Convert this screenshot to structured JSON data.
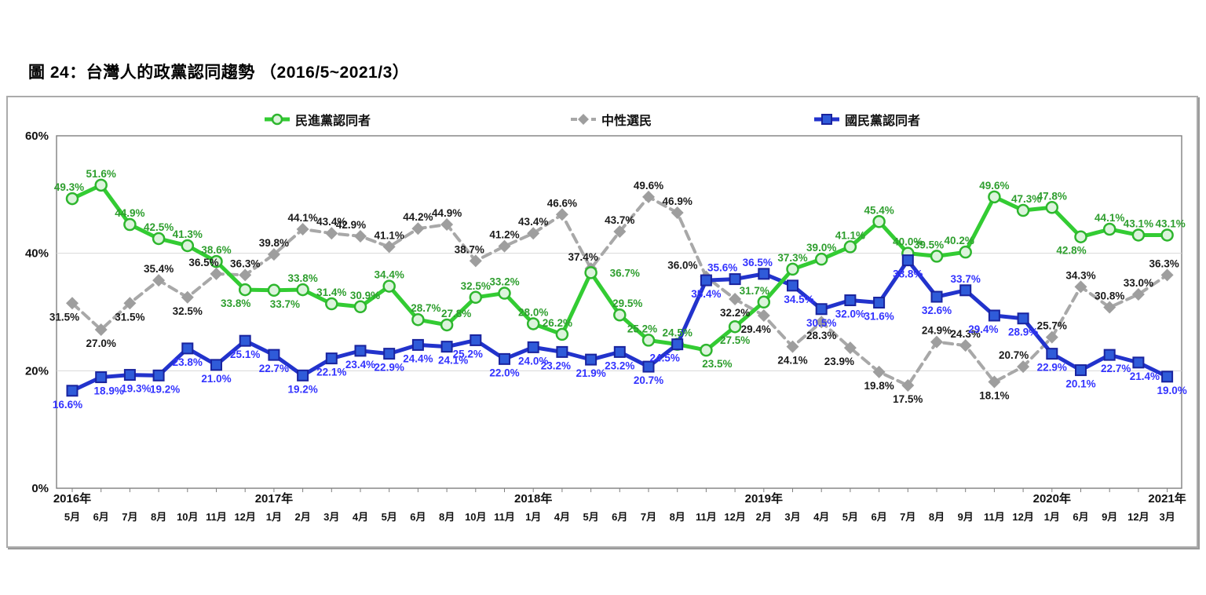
{
  "title": "圖 24：台灣人的政黨認同趨勢 （2016/5~2021/3）",
  "chart_data": {
    "type": "line",
    "title": "圖 24：台灣人的政黨認同趨勢 （2016/5~2021/3）",
    "ylim": [
      0,
      60
    ],
    "grid": "horizontal",
    "legend_position": "top",
    "y_ticks": [
      {
        "value": 0,
        "label": "0%"
      },
      {
        "value": 20,
        "label": "20%"
      },
      {
        "value": 40,
        "label": "40%"
      },
      {
        "value": 60,
        "label": "60%"
      }
    ],
    "grid_values": [
      20,
      40
    ],
    "x_categories": [
      "5月",
      "6月",
      "7月",
      "8月",
      "10月",
      "11月",
      "12月",
      "1月",
      "2月",
      "3月",
      "4月",
      "5月",
      "6月",
      "8月",
      "10月",
      "11月",
      "1月",
      "4月",
      "5月",
      "6月",
      "7月",
      "8月",
      "11月",
      "12月",
      "2月",
      "3月",
      "4月",
      "5月",
      "6月",
      "7月",
      "8月",
      "9月",
      "11月",
      "12月",
      "1月",
      "6月",
      "9月",
      "12月",
      "3月"
    ],
    "year_labels": [
      {
        "label": "2016年",
        "point_index": 0
      },
      {
        "label": "2017年",
        "point_index": 7
      },
      {
        "label": "2018年",
        "point_index": 16
      },
      {
        "label": "2019年",
        "point_index": 24
      },
      {
        "label": "2020年",
        "point_index": 34
      },
      {
        "label": "2021年",
        "point_index": 38
      }
    ],
    "series": [
      {
        "name": "民進黨認同者",
        "id": "dpp",
        "marker": "circle",
        "dashed": false,
        "line_color": "#33CC33",
        "marker_fill": "#DCF4DC",
        "marker_stroke": "#2EB62E",
        "label_color": "#2E9E2E",
        "values": [
          49.3,
          51.6,
          44.9,
          42.5,
          41.3,
          38.6,
          33.8,
          33.7,
          33.8,
          31.4,
          30.9,
          34.4,
          28.7,
          27.8,
          32.5,
          33.2,
          28.0,
          26.2,
          36.7,
          29.5,
          25.2,
          24.5,
          23.5,
          27.5,
          31.7,
          37.3,
          39.0,
          41.1,
          45.4,
          40.0,
          39.5,
          40.2,
          49.6,
          47.3,
          47.8,
          42.8,
          44.1,
          43.1,
          43.1
        ],
        "label_side": [
          "a",
          "a",
          "a",
          "a",
          "a",
          "a",
          "b",
          "b",
          "a",
          "a",
          "a",
          "a",
          "a",
          "a",
          "a",
          "a",
          "a",
          "a",
          "r",
          "a",
          "a",
          "a",
          "b",
          "b",
          "a",
          "a",
          "a",
          "a",
          "a",
          "a",
          "a",
          "a",
          "a",
          "a",
          "a",
          "b",
          "a",
          "a",
          "a"
        ],
        "label_dx": {
          "0": -4,
          "6": -12,
          "7": 14,
          "10": 6,
          "12": 10,
          "13": 12,
          "17": -6,
          "19": 10,
          "20": -8,
          "22": 14,
          "24": -12,
          "30": -10,
          "31": -8,
          "33": 4,
          "35": -12,
          "38": 4
        }
      },
      {
        "name": "中性選民",
        "id": "neutral",
        "marker": "diamond",
        "dashed": true,
        "line_color": "#A8A8A8",
        "marker_fill": "#9E9E9E",
        "marker_stroke": "#9E9E9E",
        "label_color": "#1A1A1A",
        "values": [
          31.5,
          27.0,
          31.5,
          35.4,
          32.5,
          36.5,
          36.3,
          39.8,
          44.1,
          43.4,
          42.9,
          41.1,
          44.2,
          44.9,
          38.7,
          41.2,
          43.4,
          46.6,
          37.4,
          43.7,
          49.6,
          46.9,
          36.0,
          32.2,
          29.4,
          24.1,
          28.3,
          23.9,
          19.8,
          17.5,
          24.9,
          24.3,
          18.1,
          20.7,
          25.7,
          34.3,
          30.8,
          33.0,
          36.3
        ],
        "label_side": [
          "b",
          "b",
          "b",
          "a",
          "b",
          "a",
          "a",
          "a",
          "a",
          "a",
          "a",
          "a",
          "a",
          "a",
          "a",
          "a",
          "a",
          "a",
          "a",
          "a",
          "a",
          "a",
          "a",
          "b",
          "b",
          "b",
          "b",
          "b",
          "b",
          "b",
          "a",
          "a",
          "b",
          "a",
          "a",
          "a",
          "a",
          "a",
          "a"
        ],
        "label_dx": {
          "0": -10,
          "5": -16,
          "10": -12,
          "14": -8,
          "18": -10,
          "22": -30,
          "24": -10,
          "27": -14,
          "33": -12,
          "38": -4
        }
      },
      {
        "name": "國民黨認同者",
        "id": "kmt",
        "marker": "square",
        "dashed": false,
        "line_color": "#2233CC",
        "marker_fill": "#2F5BD9",
        "marker_stroke": "#19239E",
        "label_color": "#3333FF",
        "values": [
          16.6,
          18.9,
          19.3,
          19.2,
          23.8,
          21.0,
          25.1,
          22.7,
          19.2,
          22.1,
          23.4,
          22.9,
          24.4,
          24.1,
          25.2,
          22.0,
          24.0,
          23.2,
          21.9,
          23.2,
          20.7,
          24.5,
          35.4,
          35.6,
          36.5,
          34.5,
          30.5,
          32.0,
          31.6,
          38.8,
          32.6,
          33.7,
          29.4,
          28.9,
          22.9,
          20.1,
          22.7,
          21.4,
          19.0
        ],
        "label_side": [
          "b",
          "b",
          "b",
          "b",
          "b",
          "b",
          "b",
          "b",
          "b",
          "b",
          "b",
          "b",
          "b",
          "b",
          "b",
          "b",
          "b",
          "b",
          "b",
          "b",
          "b",
          "b",
          "b",
          "a",
          "a",
          "b",
          "b",
          "b",
          "b",
          "b",
          "b",
          "a",
          "b",
          "b",
          "b",
          "b",
          "b",
          "b",
          "b"
        ],
        "label_dx": {
          "0": -6,
          "1": 10,
          "2": 8,
          "3": 8,
          "13": 8,
          "14": -10,
          "17": -8,
          "21": -16,
          "23": -16,
          "24": -8,
          "25": 8,
          "32": -14,
          "36": 8,
          "37": 8,
          "38": 6
        }
      }
    ]
  }
}
